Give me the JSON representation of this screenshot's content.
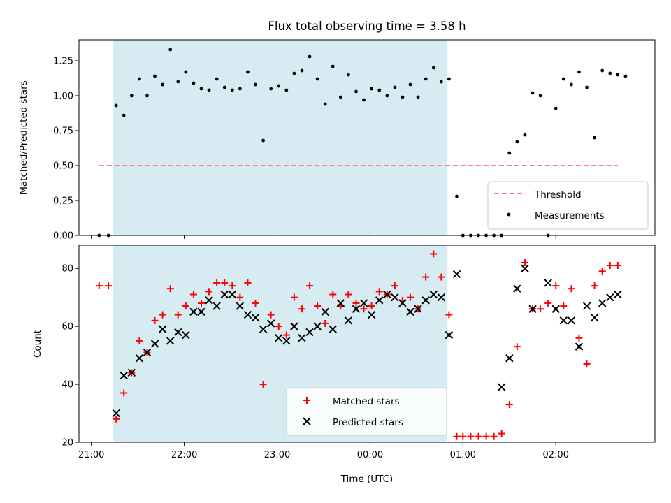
{
  "chart_data": [
    {
      "type": "scatter",
      "title": "Flux total observing time = 3.58 h",
      "ylabel": "Matched/Predicted stars",
      "xlabel": "",
      "xlim": [
        "21:00",
        "03:00"
      ],
      "ylim": [
        0,
        1.4
      ],
      "yticks": [
        "0.00",
        "0.25",
        "0.50",
        "0.75",
        "1.00",
        "1.25"
      ],
      "shaded_interval": [
        "21:14",
        "00:50"
      ],
      "shade_color": "#add8e6",
      "legend": {
        "position": "lower right",
        "entries": [
          {
            "label": "Threshold",
            "style": "dashed-line",
            "color": "#ff7f7f"
          },
          {
            "label": "Measurements",
            "style": "dot",
            "color": "#000000"
          }
        ]
      },
      "threshold": {
        "y": 0.5,
        "x_range": [
          "21:05",
          "02:40"
        ]
      },
      "series": [
        {
          "name": "Measurements",
          "color": "#000000",
          "points": [
            [
              "21:05",
              0.0
            ],
            [
              "21:11",
              0.0
            ],
            [
              "21:16",
              0.93
            ],
            [
              "21:21",
              0.86
            ],
            [
              "21:26",
              1.0
            ],
            [
              "21:31",
              1.12
            ],
            [
              "21:36",
              1.0
            ],
            [
              "21:41",
              1.14
            ],
            [
              "21:46",
              1.08
            ],
            [
              "21:51",
              1.33
            ],
            [
              "21:56",
              1.1
            ],
            [
              "22:01",
              1.17
            ],
            [
              "22:06",
              1.09
            ],
            [
              "22:11",
              1.05
            ],
            [
              "22:16",
              1.04
            ],
            [
              "22:21",
              1.12
            ],
            [
              "22:26",
              1.06
            ],
            [
              "22:31",
              1.04
            ],
            [
              "22:36",
              1.05
            ],
            [
              "22:41",
              1.17
            ],
            [
              "22:46",
              1.08
            ],
            [
              "22:51",
              0.68
            ],
            [
              "22:56",
              1.05
            ],
            [
              "23:01",
              1.07
            ],
            [
              "23:06",
              1.04
            ],
            [
              "23:11",
              1.16
            ],
            [
              "23:16",
              1.18
            ],
            [
              "23:21",
              1.28
            ],
            [
              "23:26",
              1.12
            ],
            [
              "23:31",
              0.94
            ],
            [
              "23:36",
              1.21
            ],
            [
              "23:41",
              0.99
            ],
            [
              "23:46",
              1.15
            ],
            [
              "23:51",
              1.03
            ],
            [
              "23:56",
              0.97
            ],
            [
              "00:01",
              1.05
            ],
            [
              "00:06",
              1.04
            ],
            [
              "00:11",
              1.0
            ],
            [
              "00:16",
              1.06
            ],
            [
              "00:21",
              0.99
            ],
            [
              "00:26",
              1.08
            ],
            [
              "00:31",
              0.99
            ],
            [
              "00:36",
              1.12
            ],
            [
              "00:41",
              1.2
            ],
            [
              "00:46",
              1.1
            ],
            [
              "00:51",
              1.12
            ],
            [
              "00:56",
              0.28
            ],
            [
              "01:00",
              0.0
            ],
            [
              "01:05",
              0.0
            ],
            [
              "01:10",
              0.0
            ],
            [
              "01:15",
              0.0
            ],
            [
              "01:20",
              0.0
            ],
            [
              "01:25",
              0.0
            ],
            [
              "01:30",
              0.59
            ],
            [
              "01:35",
              0.67
            ],
            [
              "01:40",
              0.72
            ],
            [
              "01:45",
              1.02
            ],
            [
              "01:50",
              1.0
            ],
            [
              "01:55",
              0.0
            ],
            [
              "02:00",
              0.91
            ],
            [
              "02:05",
              1.12
            ],
            [
              "02:10",
              1.08
            ],
            [
              "02:15",
              1.17
            ],
            [
              "02:20",
              1.06
            ],
            [
              "02:25",
              0.7
            ],
            [
              "02:30",
              1.18
            ],
            [
              "02:35",
              1.16
            ],
            [
              "02:40",
              1.15
            ],
            [
              "02:45",
              1.14
            ]
          ]
        }
      ]
    },
    {
      "type": "scatter",
      "title": "",
      "ylabel": "Count",
      "xlabel": "Time (UTC)",
      "xlim": [
        "21:00",
        "03:00"
      ],
      "xticks": [
        "21:00",
        "22:00",
        "23:00",
        "00:00",
        "01:00",
        "02:00"
      ],
      "ylim": [
        20,
        88
      ],
      "yticks": [
        "20",
        "40",
        "60",
        "80"
      ],
      "shaded_interval": [
        "21:14",
        "00:50"
      ],
      "shade_color": "#add8e6",
      "legend": {
        "position": "lower center",
        "entries": [
          {
            "label": "Matched stars",
            "style": "plus",
            "color": "#ff0000"
          },
          {
            "label": "Predicted stars",
            "style": "x",
            "color": "#000000"
          }
        ]
      },
      "series": [
        {
          "name": "Matched stars",
          "marker": "plus",
          "color": "#ff0000",
          "points": [
            [
              "21:05",
              74
            ],
            [
              "21:11",
              74
            ],
            [
              "21:16",
              28
            ],
            [
              "21:21",
              37
            ],
            [
              "21:26",
              44
            ],
            [
              "21:31",
              55
            ],
            [
              "21:36",
              51
            ],
            [
              "21:41",
              62
            ],
            [
              "21:46",
              64
            ],
            [
              "21:51",
              73
            ],
            [
              "21:56",
              64
            ],
            [
              "22:01",
              67
            ],
            [
              "22:06",
              71
            ],
            [
              "22:11",
              68
            ],
            [
              "22:16",
              72
            ],
            [
              "22:21",
              75
            ],
            [
              "22:26",
              75
            ],
            [
              "22:31",
              74
            ],
            [
              "22:36",
              70
            ],
            [
              "22:41",
              75
            ],
            [
              "22:46",
              68
            ],
            [
              "22:51",
              40
            ],
            [
              "22:56",
              64
            ],
            [
              "23:01",
              60
            ],
            [
              "23:06",
              57
            ],
            [
              "23:11",
              70
            ],
            [
              "23:16",
              66
            ],
            [
              "23:21",
              74
            ],
            [
              "23:26",
              67
            ],
            [
              "23:31",
              61
            ],
            [
              "23:36",
              71
            ],
            [
              "23:41",
              67
            ],
            [
              "23:46",
              71
            ],
            [
              "23:51",
              68
            ],
            [
              "23:56",
              66
            ],
            [
              "00:01",
              67
            ],
            [
              "00:06",
              72
            ],
            [
              "00:11",
              71
            ],
            [
              "00:16",
              74
            ],
            [
              "00:21",
              69
            ],
            [
              "00:26",
              70
            ],
            [
              "00:31",
              66
            ],
            [
              "00:36",
              77
            ],
            [
              "00:41",
              85
            ],
            [
              "00:46",
              77
            ],
            [
              "00:51",
              64
            ],
            [
              "00:56",
              22
            ],
            [
              "01:00",
              22
            ],
            [
              "01:05",
              22
            ],
            [
              "01:10",
              22
            ],
            [
              "01:15",
              22
            ],
            [
              "01:20",
              22
            ],
            [
              "01:25",
              23
            ],
            [
              "01:30",
              33
            ],
            [
              "01:35",
              53
            ],
            [
              "01:40",
              82
            ],
            [
              "01:45",
              66
            ],
            [
              "01:50",
              66
            ],
            [
              "01:55",
              68
            ],
            [
              "02:00",
              74
            ],
            [
              "02:05",
              67
            ],
            [
              "02:10",
              73
            ],
            [
              "02:15",
              56
            ],
            [
              "02:20",
              47
            ],
            [
              "02:25",
              74
            ],
            [
              "02:30",
              79
            ],
            [
              "02:35",
              81
            ],
            [
              "02:40",
              81
            ]
          ]
        },
        {
          "name": "Predicted stars",
          "marker": "x",
          "color": "#000000",
          "points": [
            [
              "21:16",
              30
            ],
            [
              "21:21",
              43
            ],
            [
              "21:26",
              44
            ],
            [
              "21:31",
              49
            ],
            [
              "21:36",
              51
            ],
            [
              "21:41",
              54
            ],
            [
              "21:46",
              59
            ],
            [
              "21:51",
              55
            ],
            [
              "21:56",
              58
            ],
            [
              "22:01",
              57
            ],
            [
              "22:06",
              65
            ],
            [
              "22:11",
              65
            ],
            [
              "22:16",
              69
            ],
            [
              "22:21",
              67
            ],
            [
              "22:26",
              71
            ],
            [
              "22:31",
              71
            ],
            [
              "22:36",
              67
            ],
            [
              "22:41",
              64
            ],
            [
              "22:46",
              63
            ],
            [
              "22:51",
              59
            ],
            [
              "22:56",
              61
            ],
            [
              "23:01",
              56
            ],
            [
              "23:06",
              55
            ],
            [
              "23:11",
              60
            ],
            [
              "23:16",
              56
            ],
            [
              "23:21",
              58
            ],
            [
              "23:26",
              60
            ],
            [
              "23:31",
              65
            ],
            [
              "23:36",
              59
            ],
            [
              "23:41",
              68
            ],
            [
              "23:46",
              62
            ],
            [
              "23:51",
              66
            ],
            [
              "23:56",
              68
            ],
            [
              "00:01",
              64
            ],
            [
              "00:06",
              69
            ],
            [
              "00:11",
              71
            ],
            [
              "00:16",
              70
            ],
            [
              "00:21",
              68
            ],
            [
              "00:26",
              65
            ],
            [
              "00:31",
              66
            ],
            [
              "00:36",
              69
            ],
            [
              "00:41",
              71
            ],
            [
              "00:46",
              70
            ],
            [
              "00:51",
              57
            ],
            [
              "00:56",
              78
            ],
            [
              "01:25",
              39
            ],
            [
              "01:30",
              49
            ],
            [
              "01:35",
              73
            ],
            [
              "01:40",
              80
            ],
            [
              "01:45",
              66
            ],
            [
              "01:55",
              75
            ],
            [
              "02:00",
              66
            ],
            [
              "02:05",
              62
            ],
            [
              "02:10",
              62
            ],
            [
              "02:15",
              53
            ],
            [
              "02:20",
              67
            ],
            [
              "02:25",
              63
            ],
            [
              "02:30",
              68
            ],
            [
              "02:35",
              70
            ],
            [
              "02:40",
              71
            ]
          ]
        }
      ]
    }
  ]
}
